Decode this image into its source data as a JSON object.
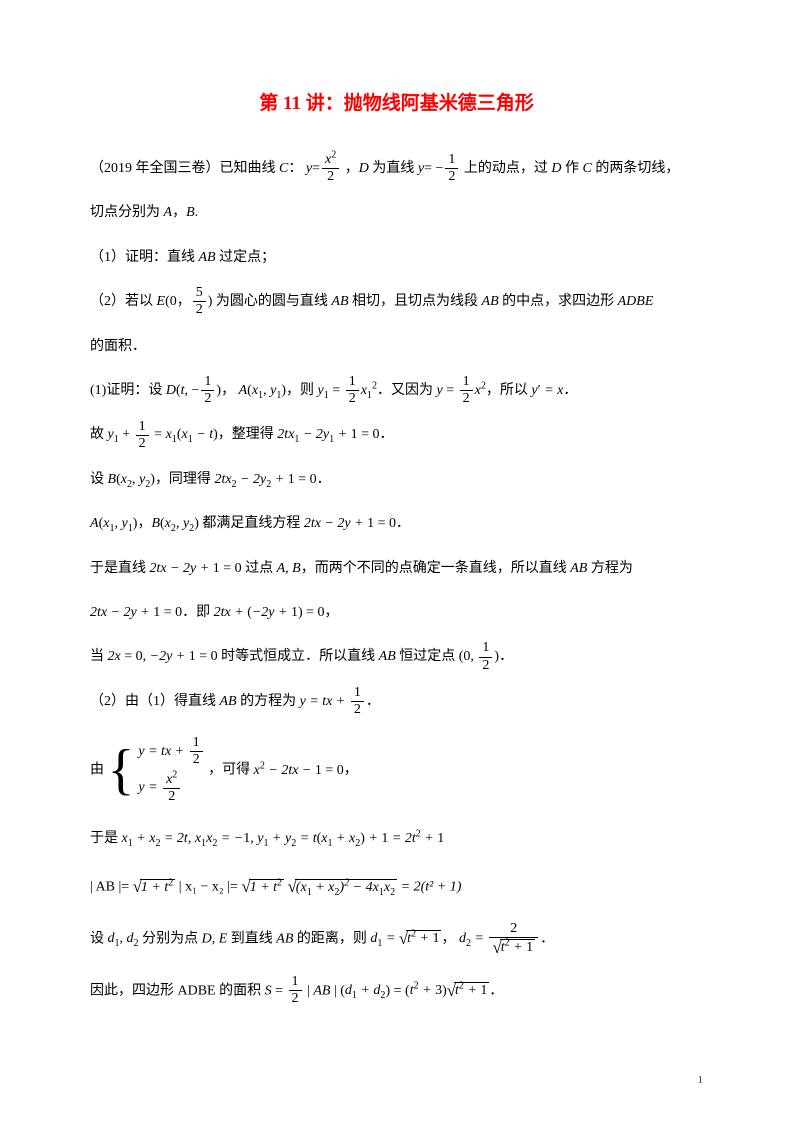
{
  "title_color": "#ff0000",
  "title_fontsize": 19,
  "body_fontsize": 14,
  "body_color": "#000000",
  "text": {
    "title": "第 11 讲：抛物线阿基米德三角形",
    "p1a": "（2019 年全国三卷）已知曲线 ",
    "p1b": "：",
    "p1c": "，",
    "p1d": " 为直线 ",
    "p1e": " 上的动点，过 ",
    "p1f": " 作 ",
    "p1g": " 的两条切线，",
    "p2": "切点分别为 ",
    "p2a": "，",
    "p2b": ".",
    "p3": "（1）证明：直线 ",
    "p3b": " 过定点；",
    "p4": "（2）若以 ",
    "p4a": "(0，",
    "p4b": ") 为圆心的圆与直线 ",
    "p4c": " 相切，且切点为线段 ",
    "p4d": " 的中点，求四边形 ",
    "p5": "的面积．",
    "p6": "(1)证明：设 ",
    "p6a": "，",
    "p6b": "，则 ",
    "p6c": "．又因为 ",
    "p6d": "，所以 ",
    "p6e": "．",
    "p7": "故 ",
    "p7a": "，整理得 ",
    "p7b": "．",
    "p8": "设 ",
    "p8a": "，同理得 ",
    "p8b": "．",
    "p9a": "，",
    "p9b": " 都满足直线方程 ",
    "p9c": "．",
    "p10": "于是直线 ",
    "p10a": " 过点 ",
    "p10b": "，而两个不同的点确定一条直线，所以直线 ",
    "p10c": " 方程为",
    "p11a": "．即 ",
    "p11b": "，",
    "p12": "当 ",
    "p12a": " 时等式恒成立．所以直线 ",
    "p12b": " 恒过定点 ",
    "p12c": "．",
    "p13": "（2）由（1）得直线 ",
    "p13a": " 的方程为 ",
    "p13b": "．",
    "p14": "由 ",
    "p14a": "，可得 ",
    "p14b": "，",
    "p15": "于是 ",
    "p16": "设 ",
    "p16a": " 分别为点 ",
    "p16b": " 到直线 ",
    "p16c": " 的距离，则 ",
    "p16d": "，  ",
    "p16e": "．",
    "p17": "因此，四边形 ADBE 的面积 ",
    "p17a": "．",
    "pagenum": "1"
  },
  "math": {
    "C": "C",
    "y": "y",
    "x": "x",
    "D": "D",
    "A": "A",
    "B": "B",
    "E": "E",
    "AB": "AB",
    "ADBE": "ADBE",
    "t": "t",
    "S": "S",
    "d": "d",
    "half": "1",
    "two": "2",
    "five": "5",
    "eq_y_x2_2_num": "x",
    "eq_y_x2_2_den": "2",
    "neg_half_num": "1",
    "neg_half_den": "2",
    "prime": "′",
    "eq1": "2tx₁ − 2y₁ + 1 = 0",
    "eq2": "2tx₂ − 2y₂ + 1 = 0",
    "eq3": "2tx − 2y + 1 = 0",
    "eq4": "2tx + (−2y + 1) = 0",
    "eq5": "2x = 0, −2y + 1 = 0",
    "fixed_pt": "(0, ",
    "sys_eq2_num": "x",
    "sys_eq2_den": "2",
    "quad": "x² − 2tx − 1 = 0",
    "sum": "x₁ + x₂ = 2t, x₁x₂ = −1, y₁ + y₂ = t(x₁ + x₂) + 1 = 2t² + 1",
    "ab_len": "| AB |= ",
    "one_plus_t2": "1 + t²",
    "x1mx2": " | x₁ − x₂ |= ",
    "disc": "(x₁ + x₂)² − 4x₁x₂",
    "eq_2t2p1": " = 2(t² + 1)",
    "d1_eq": "d₁ = ",
    "t2p1": "t² + 1",
    "d2_eq": "d₂ = ",
    "d2_num": "2",
    "S_eq": "S = ",
    "S_half_num": "1",
    "S_half_den": "2",
    "S_mid": " | AB | (d₁ + d₂) = (t² + 3)",
    "comma": ",",
    "DE": "D, E"
  }
}
